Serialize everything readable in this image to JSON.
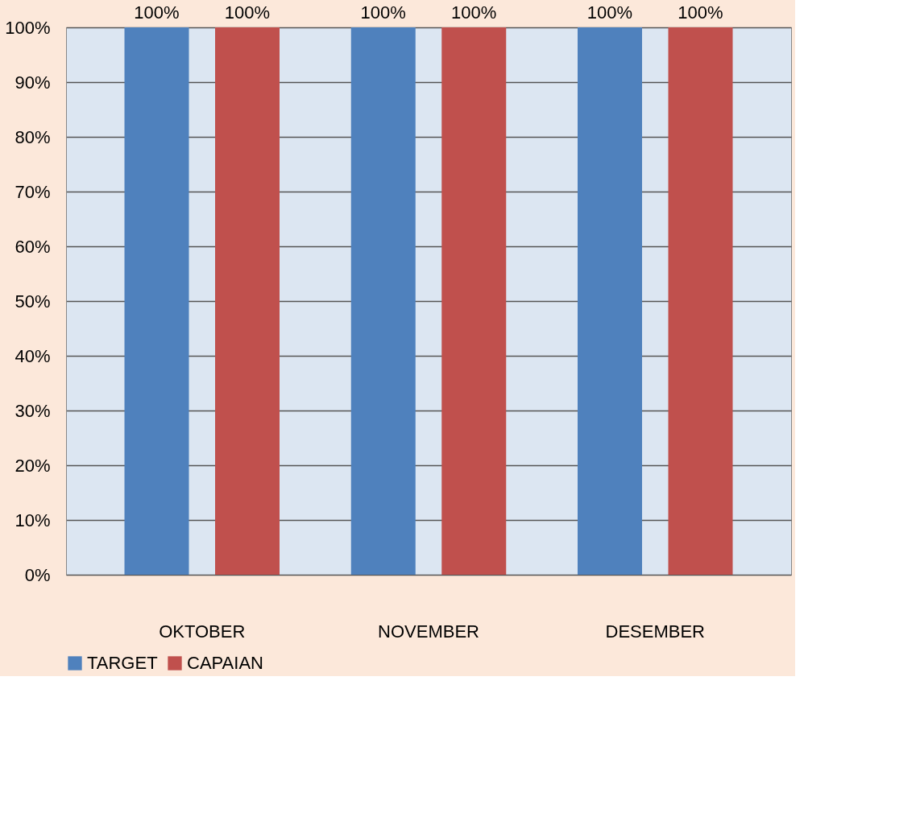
{
  "chart_data": {
    "type": "bar",
    "categories": [
      "OKTOBER",
      "NOVEMBER",
      "DESEMBER"
    ],
    "series": [
      {
        "name": "TARGET",
        "color": "#4f81bd",
        "values": [
          100,
          100,
          100
        ],
        "value_labels": [
          "100%",
          "100%",
          "100%"
        ]
      },
      {
        "name": "CAPAIAN",
        "color": "#c0504d",
        "values": [
          100,
          100,
          100
        ],
        "value_labels": [
          "100%",
          "100%",
          "100%"
        ]
      }
    ],
    "ylim": [
      0,
      100
    ],
    "yticks": [
      {
        "value": 0,
        "label": "0%"
      },
      {
        "value": 10,
        "label": "10%"
      },
      {
        "value": 20,
        "label": "20%"
      },
      {
        "value": 30,
        "label": "30%"
      },
      {
        "value": 40,
        "label": "40%"
      },
      {
        "value": 50,
        "label": "50%"
      },
      {
        "value": 60,
        "label": "60%"
      },
      {
        "value": 70,
        "label": "70%"
      },
      {
        "value": 80,
        "label": "80%"
      },
      {
        "value": 90,
        "label": "90%"
      },
      {
        "value": 100,
        "label": "100%"
      }
    ],
    "grid": "y",
    "legend": "bottom"
  }
}
